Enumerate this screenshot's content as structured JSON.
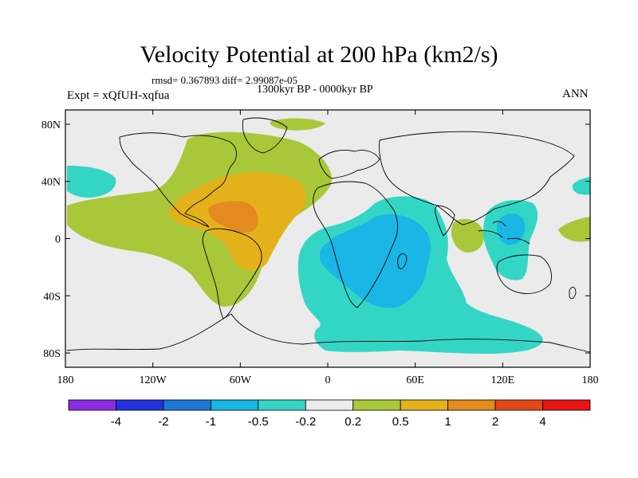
{
  "title": "Velocity Potential at 200 hPa (km2/s)",
  "stats": "rmsd= 0.367893 diff= 2.99087e-05",
  "period": "1300kyr BP - 0000kyr BP",
  "experiment": "Expt = xQfUH-xqfua",
  "season": "ANN",
  "map": {
    "projection": "cylindrical equidistant",
    "lon_range": [
      -180,
      180
    ],
    "lat_range": [
      -90,
      90
    ],
    "x_ticks": [
      {
        "lon": -180,
        "label": "180"
      },
      {
        "lon": -120,
        "label": "120W"
      },
      {
        "lon": -60,
        "label": "60W"
      },
      {
        "lon": 0,
        "label": "0"
      },
      {
        "lon": 60,
        "label": "60E"
      },
      {
        "lon": 120,
        "label": "120E"
      },
      {
        "lon": 180,
        "label": "180"
      }
    ],
    "y_ticks": [
      {
        "lat": 80,
        "label": "80N"
      },
      {
        "lat": 40,
        "label": "40N"
      },
      {
        "lat": 0,
        "label": "0"
      },
      {
        "lat": -40,
        "label": "40S"
      },
      {
        "lat": -80,
        "label": "80S"
      }
    ],
    "background_color": "#ebebeb"
  },
  "colorbar": {
    "labels": [
      "-4",
      "-2",
      "-1",
      "-0.5",
      "-0.2",
      "0.2",
      "0.5",
      "1",
      "2",
      "4"
    ],
    "colors": [
      "#8a2be2",
      "#2233dd",
      "#1f77d8",
      "#19b6e6",
      "#33d6c4",
      "#ebebeb",
      "#a8c83a",
      "#e3b21b",
      "#e58a1e",
      "#e0481a",
      "#e81414"
    ]
  },
  "colors": {
    "pos1": "#a8c83a",
    "pos2": "#e3b21b",
    "pos3": "#e58a1e",
    "neg1": "#33d6c4",
    "neg2": "#19b6e6"
  }
}
